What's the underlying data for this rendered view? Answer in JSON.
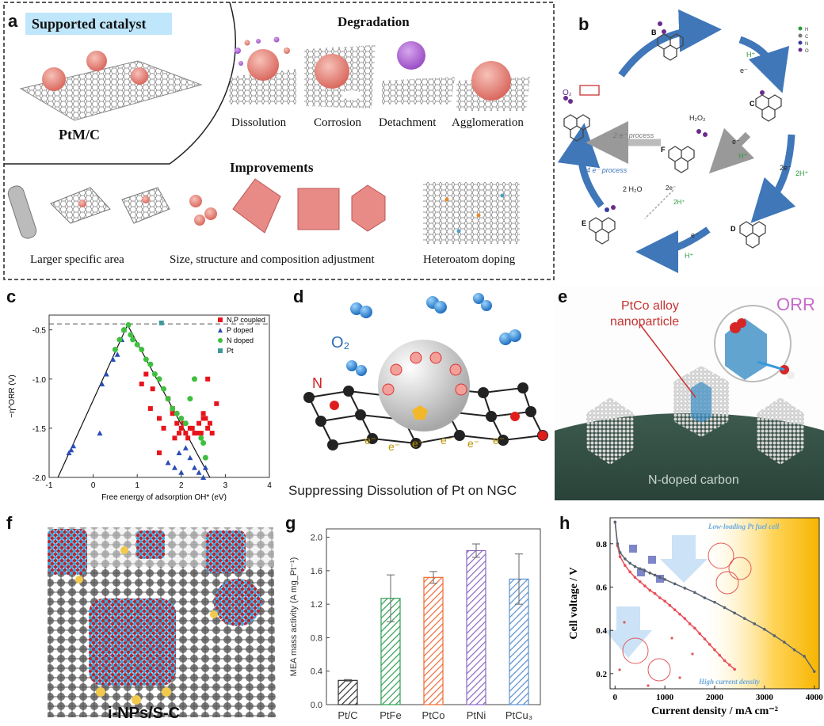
{
  "panel_a": {
    "label": "a",
    "banner": "Supported catalyst",
    "catalyst_name": "PtM/C",
    "degradation_title": "Degradation",
    "degradation_items": [
      "Dissolution",
      "Corrosion",
      "Detachment",
      "Agglomeration"
    ],
    "improvements_title": "Improvements",
    "improvement_items": [
      "Larger specific area",
      "Size, structure and composition adjustment",
      "Heteroatom doping"
    ]
  },
  "panel_b": {
    "label": "b",
    "states": [
      "B",
      "C",
      "D",
      "E",
      "F"
    ],
    "steps": [
      "H⁺",
      "e⁻",
      "2e⁻",
      "2H⁺",
      "e⁻",
      "H⁺",
      "e⁻",
      "H⁺",
      "2e⁻",
      "2H⁺"
    ],
    "species": [
      "O₂",
      "H₂O₂",
      "2 H₂O"
    ],
    "process_2e": "2 e⁻ process",
    "process_4e": "4 e⁻ process",
    "legend": [
      "H",
      "C",
      "N",
      "O"
    ]
  },
  "panel_c": {
    "label": "c",
    "legend": [
      "N,P coupled",
      "P doped",
      "N doped",
      "Pt"
    ],
    "colors": {
      "np": "#e8141c",
      "p": "#2b4db5",
      "n": "#3fbf3f",
      "pt": "#3e9a9a"
    }
  },
  "panel_d": {
    "label": "d",
    "o2": "O₂",
    "n_label": "N",
    "caption": "Suppressing Dissolution of Pt on NGC",
    "electrons": [
      "e⁻",
      "e⁻",
      "e⁻",
      "e⁻",
      "e⁻",
      "e⁻"
    ]
  },
  "panel_e": {
    "label": "e",
    "alloy_label_1": "PtCo alloy",
    "alloy_label_2": "nanoparticle",
    "orr": "ORR",
    "support": "N-doped carbon"
  },
  "panel_f": {
    "label": "f",
    "caption": "i-NPs/S-C"
  },
  "panel_g": {
    "label": "g",
    "colors": [
      "#333333",
      "#2e9e4f",
      "#ee6a34",
      "#8a68c2",
      "#5a8fd0"
    ]
  },
  "panel_h": {
    "label": "h",
    "inset_top": "Low-loading Pt fuel cell",
    "inset_bottom": "High current density",
    "colors": {
      "red": "#e8505b",
      "gray": "#5a6470"
    }
  },
  "chart_data": [
    {
      "type": "scatter",
      "xlabel": "Free energy of adsorption OH* (eV)",
      "ylabel": "−η^ORR (V)",
      "xlim": [
        -1,
        4
      ],
      "ylim": [
        -2.0,
        -0.35
      ],
      "xticks": [
        "-1",
        "0",
        "1",
        "2",
        "3",
        "4"
      ],
      "yticks": [
        "-0.5",
        "-1.0",
        "-1.5",
        "-2.0"
      ],
      "reference_line_y": -0.44,
      "volcano": {
        "x": [
          -0.8,
          0.78,
          2.65
        ],
        "y": [
          -2.0,
          -0.45,
          -2.0
        ]
      },
      "series": [
        {
          "name": "N,P coupled",
          "x": [
            1.1,
            1.2,
            1.3,
            1.5,
            1.6,
            1.7,
            1.8,
            1.9,
            2.0,
            2.1,
            2.2,
            2.3,
            2.4,
            2.5,
            2.6,
            1.35,
            1.85,
            2.05,
            2.25,
            2.45,
            2.55,
            2.7,
            2.6,
            2.8,
            1.8,
            1.95,
            2.15,
            2.35,
            2.5,
            2.65,
            1.5
          ],
          "y": [
            -1.05,
            -0.95,
            -1.3,
            -1.4,
            -1.5,
            -1.2,
            -1.35,
            -1.45,
            -1.5,
            -1.55,
            -1.5,
            -1.55,
            -1.45,
            -1.4,
            -1.5,
            -1.1,
            -1.6,
            -1.45,
            -1.5,
            -1.55,
            -1.4,
            -1.55,
            -1.0,
            -1.25,
            -1.3,
            -1.55,
            -1.6,
            -1.55,
            -1.35,
            -1.45,
            -1.75
          ]
        },
        {
          "name": "P doped",
          "x": [
            -0.55,
            -0.5,
            -0.45,
            0.2,
            0.3,
            0.45,
            0.55,
            0.65,
            0.7,
            1.7,
            1.85,
            2.0,
            2.1,
            2.2,
            2.3,
            2.4,
            2.5,
            2.55,
            0.15,
            1.95
          ],
          "y": [
            -1.75,
            -1.72,
            -1.68,
            -1.05,
            -0.95,
            -0.8,
            -0.75,
            -0.6,
            -0.5,
            -1.85,
            -1.9,
            -1.95,
            -1.7,
            -1.8,
            -1.9,
            -1.95,
            -2.0,
            -1.9,
            -1.55,
            -1.75
          ]
        },
        {
          "name": "N doped",
          "x": [
            0.7,
            0.8,
            0.85,
            0.9,
            1.0,
            1.1,
            1.2,
            1.3,
            1.4,
            1.5,
            1.6,
            1.7,
            1.8,
            1.9,
            2.0,
            2.1,
            2.2,
            2.3,
            2.45,
            2.5,
            2.55,
            0.5,
            0.6
          ],
          "y": [
            -0.5,
            -0.45,
            -0.55,
            -0.6,
            -0.65,
            -0.7,
            -0.8,
            -0.85,
            -0.95,
            -1.0,
            -1.1,
            -1.2,
            -1.3,
            -1.35,
            -1.4,
            -1.45,
            -1.2,
            -1.0,
            -1.6,
            -1.65,
            -1.8,
            -0.7,
            -0.6
          ]
        },
        {
          "name": "Pt",
          "x": [
            1.55
          ],
          "y": [
            -0.43
          ]
        }
      ]
    },
    {
      "type": "bar",
      "categories": [
        "Pt/C",
        "PtFe",
        "PtCo",
        "PtNi",
        "PtCu₃"
      ],
      "values": [
        0.29,
        1.27,
        1.52,
        1.84,
        1.5
      ],
      "errors": [
        0.01,
        0.28,
        0.07,
        0.08,
        0.3
      ],
      "ylabel": "MEA mass activity (A mg_Pt⁻¹)",
      "ylim": [
        0,
        2.1
      ],
      "yticks": [
        "0.0",
        "0.4",
        "0.8",
        "1.2",
        "1.6",
        "2.0"
      ]
    },
    {
      "type": "line",
      "xlabel": "Current density / mA cm⁻²",
      "ylabel": "Cell voltage / V",
      "xlim": [
        -100,
        4100
      ],
      "ylim": [
        0.13,
        0.92
      ],
      "xticks": [
        "0",
        "1000",
        "2000",
        "3000",
        "4000"
      ],
      "yticks": [
        "0.2",
        "0.4",
        "0.6",
        "0.8"
      ],
      "series": [
        {
          "name": "",
          "x": [
            0,
            50,
            100,
            200,
            300,
            400,
            500,
            600,
            700,
            800,
            900,
            1000,
            1100,
            1200,
            1300,
            1400,
            1500,
            1600,
            1700,
            1800,
            1900,
            2000,
            2100,
            2200,
            2300,
            2400
          ],
          "y": [
            0.9,
            0.79,
            0.74,
            0.7,
            0.67,
            0.645,
            0.625,
            0.605,
            0.585,
            0.57,
            0.55,
            0.535,
            0.515,
            0.495,
            0.475,
            0.455,
            0.43,
            0.41,
            0.385,
            0.36,
            0.335,
            0.31,
            0.285,
            0.26,
            0.24,
            0.22
          ]
        },
        {
          "name": "",
          "x": [
            0,
            50,
            100,
            200,
            300,
            400,
            500,
            600,
            700,
            800,
            900,
            1000,
            1200,
            1400,
            1600,
            1800,
            2000,
            2200,
            2400,
            2600,
            2800,
            3000,
            3200,
            3400,
            3600,
            3800,
            4000
          ],
          "y": [
            0.9,
            0.8,
            0.76,
            0.73,
            0.71,
            0.695,
            0.685,
            0.675,
            0.665,
            0.655,
            0.645,
            0.635,
            0.615,
            0.595,
            0.575,
            0.55,
            0.53,
            0.505,
            0.48,
            0.455,
            0.43,
            0.405,
            0.375,
            0.345,
            0.31,
            0.28,
            0.21
          ]
        }
      ]
    }
  ]
}
